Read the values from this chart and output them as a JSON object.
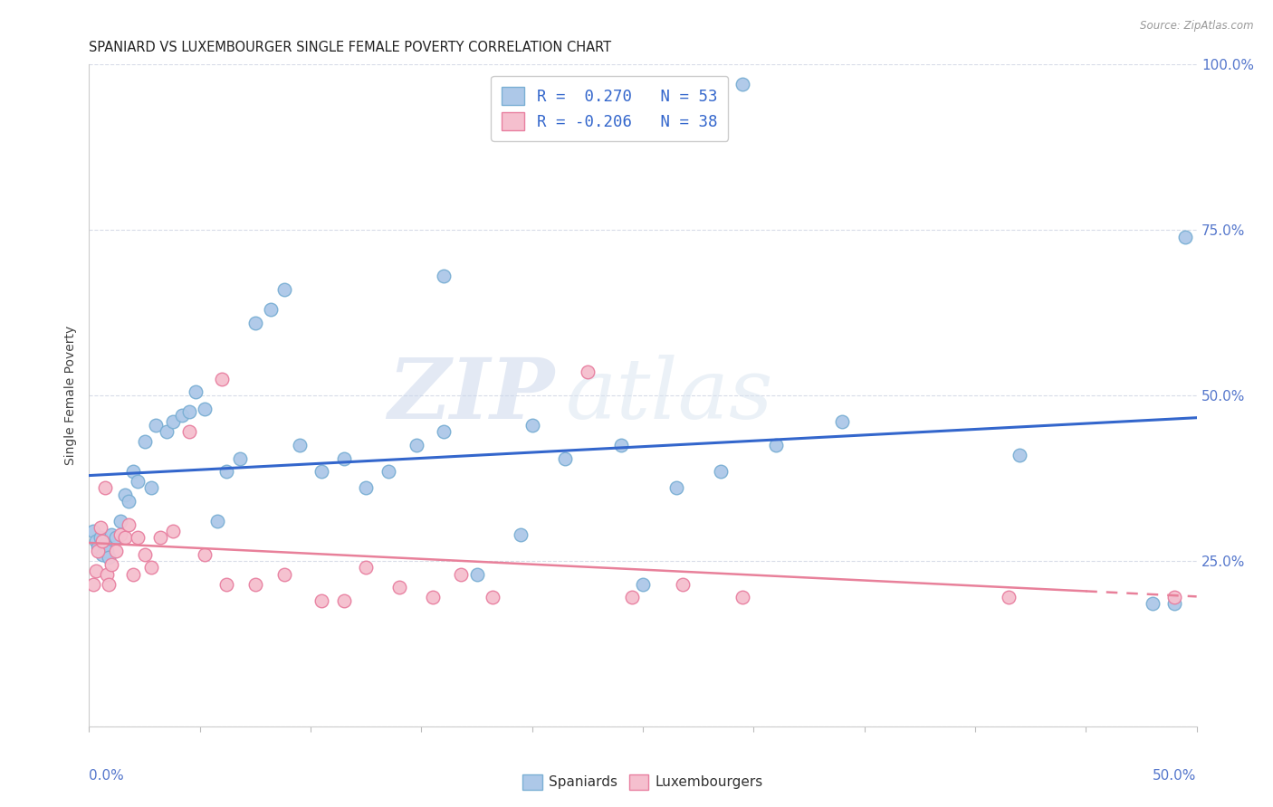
{
  "title": "SPANIARD VS LUXEMBOURGER SINGLE FEMALE POVERTY CORRELATION CHART",
  "source": "Source: ZipAtlas.com",
  "ylabel": "Single Female Poverty",
  "ytick_labels": [
    "",
    "25.0%",
    "50.0%",
    "75.0%",
    "100.0%"
  ],
  "watermark_zip": "ZIP",
  "watermark_atlas": "atlas",
  "legend_line1": "R =  0.270   N = 53",
  "legend_line2": "R = -0.206   N = 38",
  "legend_labels_bottom": [
    "Spaniards",
    "Luxembourgers"
  ],
  "spaniards_color": "#adc8e8",
  "spaniards_edge": "#7aafd4",
  "luxembourgers_color": "#f5bfce",
  "luxembourgers_edge": "#e87fa0",
  "blue_line_color": "#3366cc",
  "pink_line_color": "#e8809a",
  "xlim": [
    0.0,
    0.5
  ],
  "ylim": [
    0.0,
    1.0
  ],
  "background_color": "#ffffff",
  "grid_color": "#d8dce8",
  "spaniards_x": [
    0.002,
    0.003,
    0.004,
    0.005,
    0.006,
    0.007,
    0.008,
    0.009,
    0.01,
    0.012,
    0.014,
    0.016,
    0.018,
    0.02,
    0.022,
    0.025,
    0.028,
    0.03,
    0.035,
    0.038,
    0.042,
    0.045,
    0.048,
    0.052,
    0.058,
    0.062,
    0.068,
    0.075,
    0.082,
    0.088,
    0.095,
    0.105,
    0.115,
    0.125,
    0.135,
    0.148,
    0.16,
    0.175,
    0.195,
    0.215,
    0.24,
    0.265,
    0.285,
    0.31,
    0.34,
    0.48,
    0.49,
    0.495,
    0.16,
    0.2,
    0.42,
    0.25,
    0.295
  ],
  "spaniards_y": [
    0.295,
    0.28,
    0.27,
    0.285,
    0.26,
    0.275,
    0.265,
    0.255,
    0.29,
    0.285,
    0.31,
    0.35,
    0.34,
    0.385,
    0.37,
    0.43,
    0.36,
    0.455,
    0.445,
    0.46,
    0.47,
    0.475,
    0.505,
    0.48,
    0.31,
    0.385,
    0.405,
    0.61,
    0.63,
    0.66,
    0.425,
    0.385,
    0.405,
    0.36,
    0.385,
    0.425,
    0.445,
    0.23,
    0.29,
    0.405,
    0.425,
    0.36,
    0.385,
    0.425,
    0.46,
    0.185,
    0.185,
    0.74,
    0.68,
    0.455,
    0.41,
    0.215,
    0.97
  ],
  "luxembourgers_x": [
    0.002,
    0.003,
    0.004,
    0.005,
    0.006,
    0.007,
    0.008,
    0.009,
    0.01,
    0.012,
    0.014,
    0.016,
    0.018,
    0.02,
    0.022,
    0.025,
    0.028,
    0.032,
    0.038,
    0.045,
    0.052,
    0.062,
    0.075,
    0.088,
    0.105,
    0.115,
    0.125,
    0.14,
    0.155,
    0.168,
    0.182,
    0.225,
    0.245,
    0.268,
    0.295,
    0.415,
    0.49,
    0.06
  ],
  "luxembourgers_y": [
    0.215,
    0.235,
    0.265,
    0.3,
    0.28,
    0.36,
    0.23,
    0.215,
    0.245,
    0.265,
    0.29,
    0.285,
    0.305,
    0.23,
    0.285,
    0.26,
    0.24,
    0.285,
    0.295,
    0.445,
    0.26,
    0.215,
    0.215,
    0.23,
    0.19,
    0.19,
    0.24,
    0.21,
    0.195,
    0.23,
    0.195,
    0.535,
    0.195,
    0.215,
    0.195,
    0.195,
    0.195,
    0.525
  ]
}
